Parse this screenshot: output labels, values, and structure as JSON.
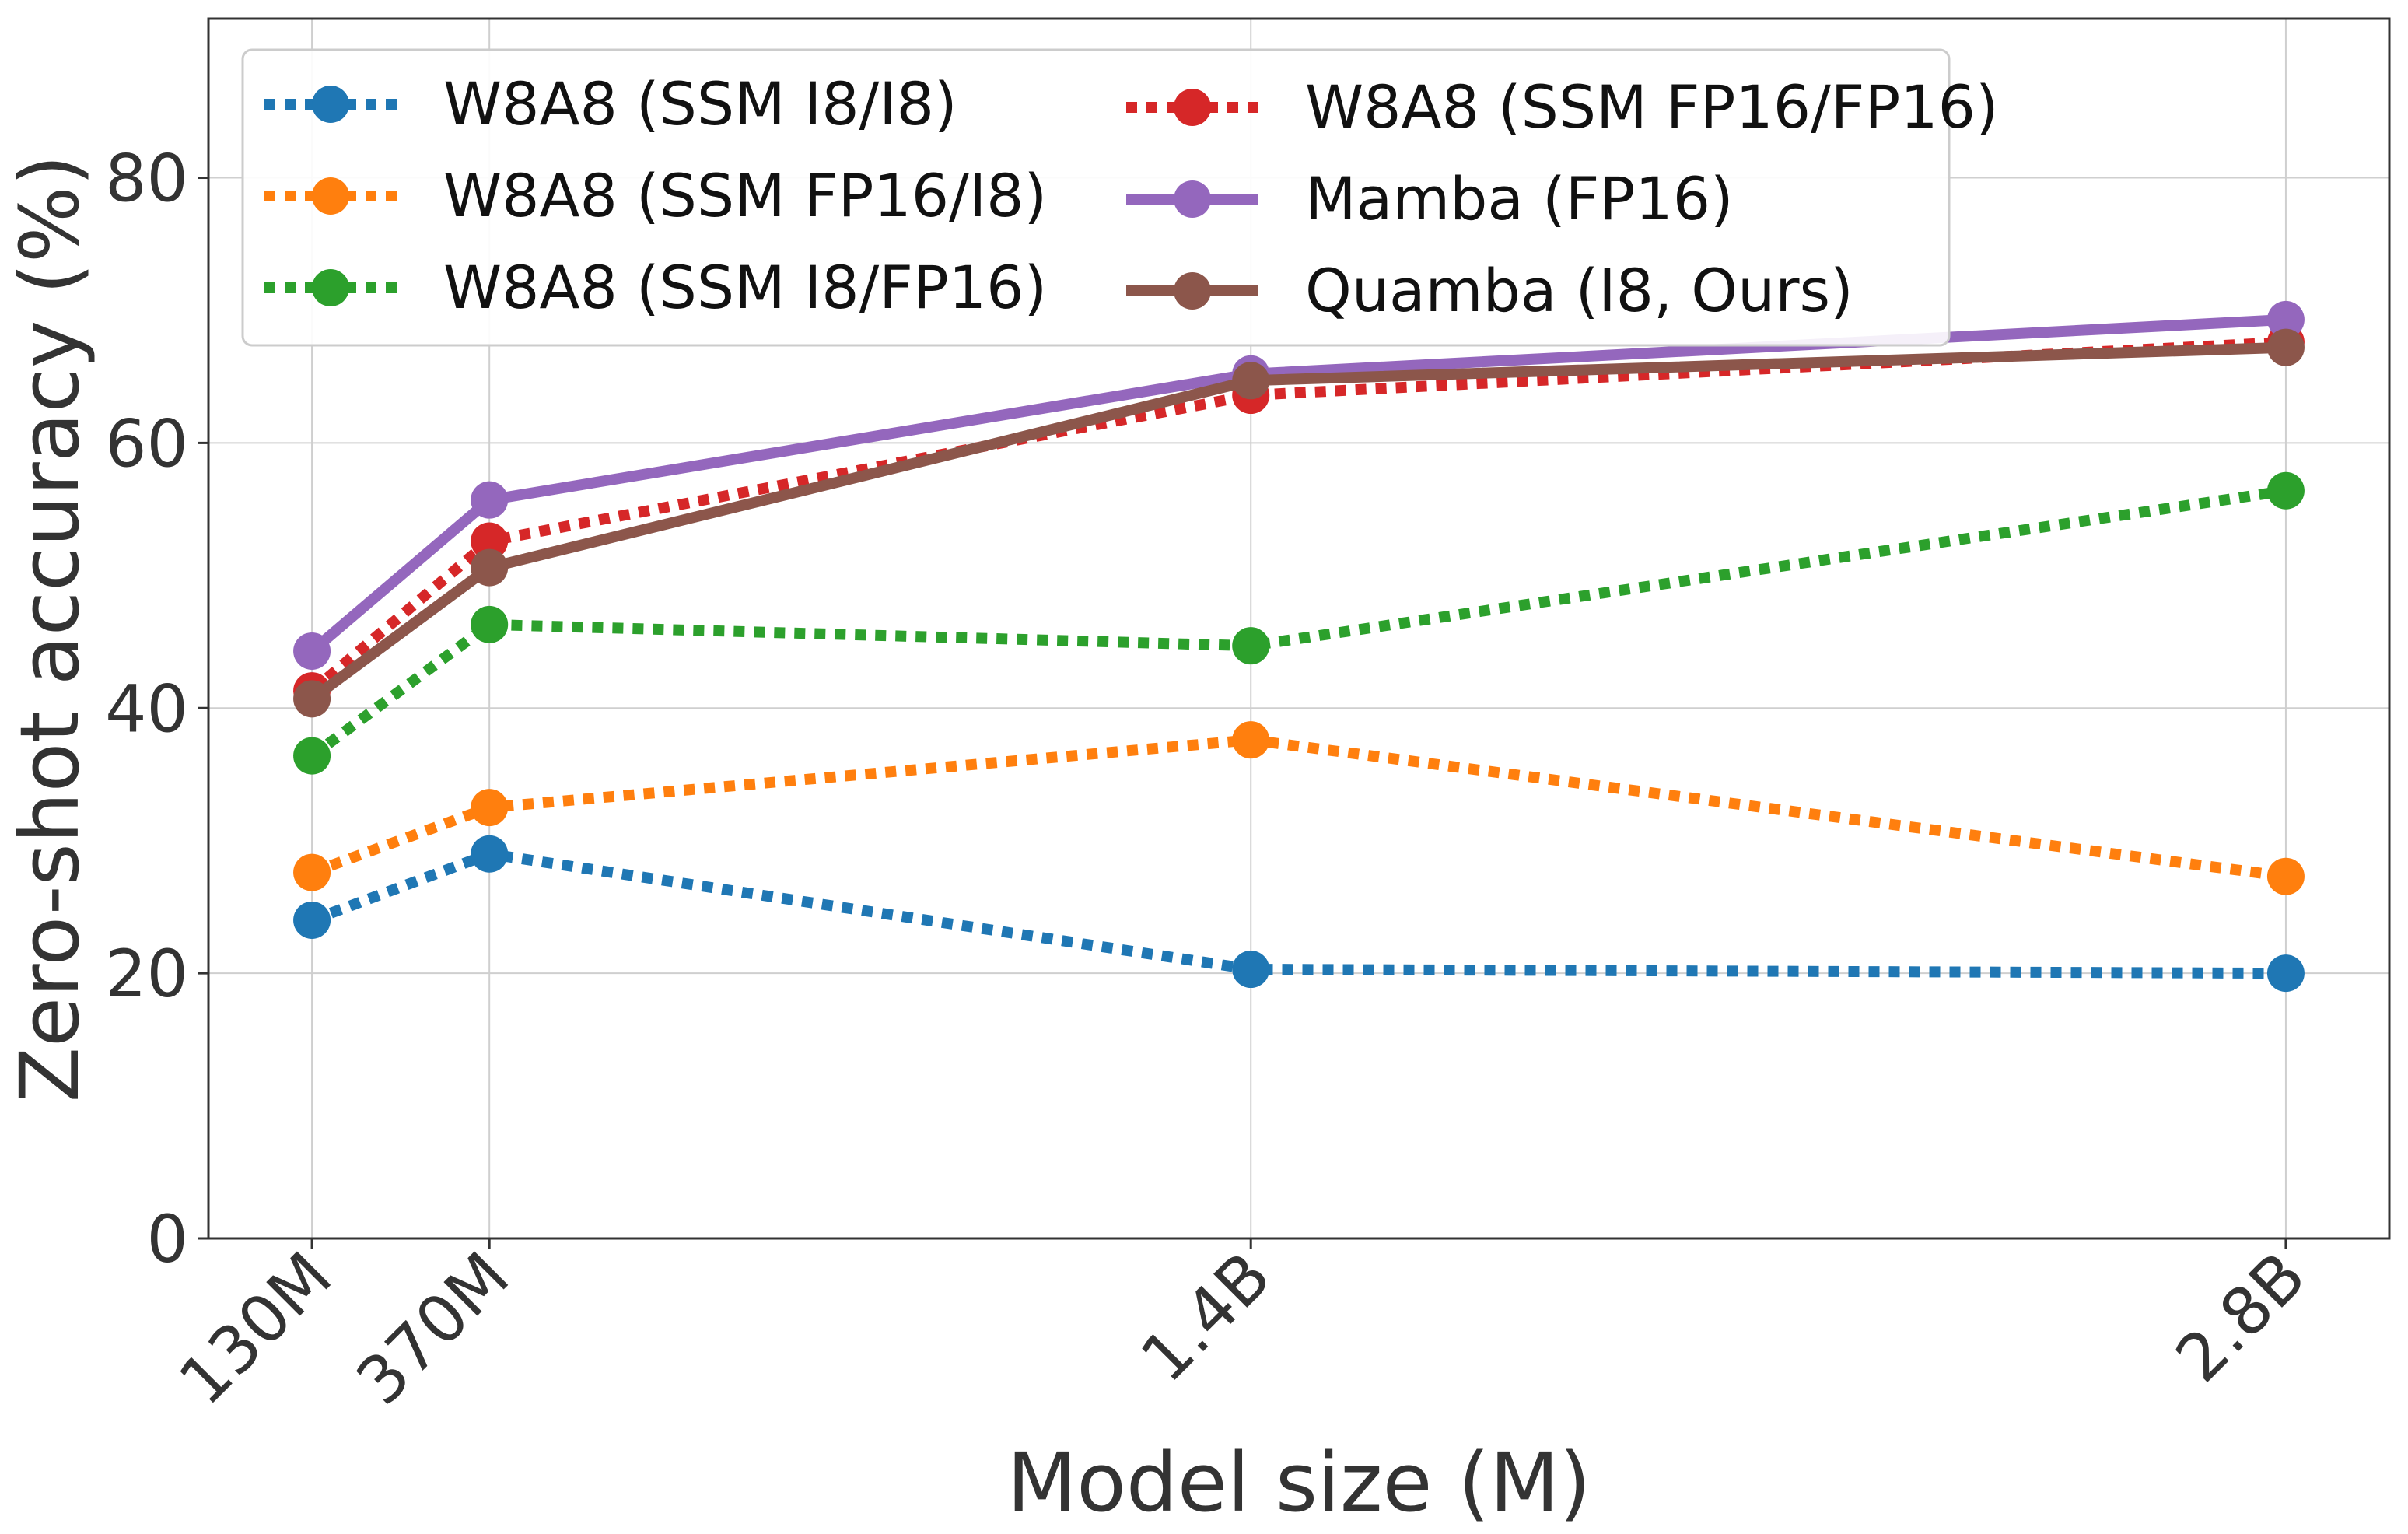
{
  "chart_data": {
    "type": "line",
    "title": "",
    "xlabel": "Model size (M)",
    "ylabel": "Zero-shot accuracy (%)",
    "categories": [
      "130M",
      "370M",
      "1.4B",
      "2.8B"
    ],
    "x": [
      130,
      370,
      1400,
      2800
    ],
    "ylim": [
      0,
      92
    ],
    "xlim": [
      -10,
      2940
    ],
    "yticks": [
      0,
      20,
      40,
      60,
      80
    ],
    "grid": true,
    "legend_position": "top-left",
    "series": [
      {
        "name": "W8A8 (SSM I8/I8)",
        "color": "#1f77b4",
        "style": "dotted",
        "values": [
          24.0,
          29.0,
          20.3,
          20.0
        ]
      },
      {
        "name": "W8A8 (SSM FP16/I8)",
        "color": "#ff7f0e",
        "style": "dotted",
        "values": [
          27.6,
          32.5,
          37.6,
          27.3
        ]
      },
      {
        "name": "W8A8 (SSM I8/FP16)",
        "color": "#2ca02c",
        "style": "dotted",
        "values": [
          36.4,
          46.3,
          44.7,
          56.4
        ]
      },
      {
        "name": "W8A8 (SSM FP16/FP16)",
        "color": "#d62728",
        "style": "dotted",
        "values": [
          41.3,
          52.6,
          63.6,
          67.6
        ]
      },
      {
        "name": "Mamba (FP16)",
        "color": "#9467bd",
        "style": "solid",
        "values": [
          44.3,
          55.7,
          65.2,
          69.3
        ]
      },
      {
        "name": "Quamba (I8, Ours)",
        "color": "#8c564b",
        "style": "solid",
        "values": [
          40.7,
          50.6,
          64.7,
          67.2
        ]
      }
    ]
  }
}
